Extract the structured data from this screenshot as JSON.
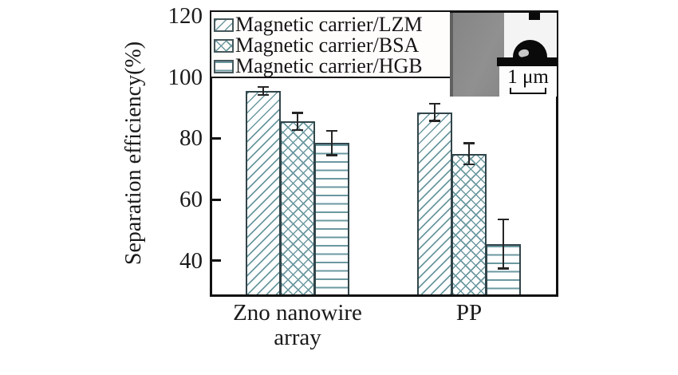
{
  "figure": {
    "ylabel": "Separation efficiency(%)",
    "legend": {
      "items": [
        {
          "label": "Magnetic carrier/LZM",
          "pattern": "diagonal"
        },
        {
          "label": "Magnetic carrier/BSA",
          "pattern": "cross"
        },
        {
          "label": "Magnetic carrier/HGB",
          "pattern": "horizontal"
        }
      ]
    },
    "inset": {
      "description": "SEM micrograph with contact-angle droplet photo",
      "scale_label": "1 μm"
    }
  },
  "chart_data": {
    "type": "bar",
    "title": "",
    "xlabel": "",
    "ylabel": "Separation efficiency(%)",
    "categories": [
      "Zno nanowire array",
      "PP"
    ],
    "categories_display": [
      [
        "Zno nanowire",
        "array"
      ],
      [
        "PP"
      ]
    ],
    "series": [
      {
        "name": "Magnetic carrier/LZM",
        "pattern": "diagonal",
        "values": [
          95.5,
          88.5
        ],
        "errors": [
          1.3,
          2.8
        ]
      },
      {
        "name": "Magnetic carrier/BSA",
        "pattern": "cross",
        "values": [
          85.5,
          75.0
        ],
        "errors": [
          2.8,
          3.5
        ]
      },
      {
        "name": "Magnetic carrier/HGB",
        "pattern": "horizontal",
        "values": [
          78.5,
          45.5
        ],
        "errors": [
          4.0,
          8.0
        ]
      }
    ],
    "yticks": [
      40,
      60,
      80,
      100,
      120
    ],
    "ylim": [
      29,
      121
    ],
    "grid": false,
    "legend_position": "upper left",
    "error_bars": true,
    "colors": {
      "hatch_line": "#6b98a0",
      "bar_border": "#31454a",
      "error_bar": "#262626",
      "axis": "#111111",
      "sem_gray": "#8d8d8d"
    }
  }
}
